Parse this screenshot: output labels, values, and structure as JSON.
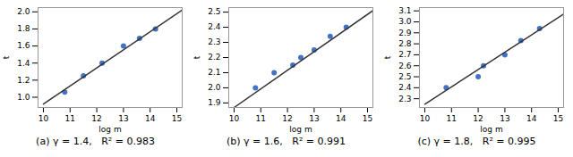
{
  "chart_data": [
    {
      "type": "scatter",
      "title": "(a) γ = 1.4,   R² = 0.983",
      "xlabel": "log m",
      "ylabel": "t",
      "xlim": [
        9.8,
        15.2
      ],
      "xticks": [
        10,
        11,
        12,
        13,
        14,
        15
      ],
      "ylim": [
        0.88,
        2.05
      ],
      "yticks": [
        {
          "value": 1.0,
          "label": "1.0"
        },
        1.2,
        1.4,
        1.6,
        1.8,
        {
          "value": 2.0,
          "label": "2.0"
        }
      ],
      "series": [
        {
          "type": "scatter",
          "color": "#4472c4",
          "x": [
            10.8,
            11.5,
            12.2,
            13.0,
            13.6,
            14.2
          ],
          "values": [
            1.06,
            1.25,
            1.4,
            1.6,
            1.69,
            1.8
          ]
        },
        {
          "type": "line",
          "color": "#333333",
          "x": [
            10.0,
            15.2
          ],
          "values": [
            0.92,
            2.02
          ]
        }
      ]
    },
    {
      "type": "scatter",
      "title": "(b) γ = 1.6,   R² = 0.991",
      "xlabel": "log m",
      "ylabel": "t",
      "xlim": [
        9.8,
        15.2
      ],
      "xticks": [
        10,
        11,
        12,
        13,
        14,
        15
      ],
      "ylim": [
        1.87,
        2.53
      ],
      "yticks": [
        1.9,
        {
          "value": 2.0,
          "label": "2.0"
        },
        2.1,
        2.2,
        2.3,
        2.4,
        2.5
      ],
      "series": [
        {
          "type": "scatter",
          "color": "#4472c4",
          "x": [
            10.8,
            11.5,
            12.2,
            12.5,
            13.0,
            13.6,
            14.2
          ],
          "values": [
            2.0,
            2.1,
            2.15,
            2.2,
            2.25,
            2.34,
            2.4
          ]
        },
        {
          "type": "line",
          "color": "#333333",
          "x": [
            10.0,
            15.2
          ],
          "values": [
            1.87,
            2.51
          ]
        }
      ]
    },
    {
      "type": "scatter",
      "title": "(c) γ = 1.8,   R² = 0.995",
      "xlabel": "log m",
      "ylabel": "t",
      "xlim": [
        9.8,
        15.2
      ],
      "xticks": [
        10,
        11,
        12,
        13,
        14,
        15
      ],
      "ylim": [
        2.22,
        3.13
      ],
      "yticks": [
        2.3,
        2.4,
        2.5,
        2.6,
        2.7,
        2.8,
        2.9,
        {
          "value": 3.0,
          "label": "3.0"
        },
        3.1
      ],
      "series": [
        {
          "type": "scatter",
          "color": "#4472c4",
          "x": [
            10.8,
            12.0,
            12.2,
            13.0,
            13.6,
            14.3
          ],
          "values": [
            2.4,
            2.5,
            2.6,
            2.7,
            2.83,
            2.94
          ]
        },
        {
          "type": "line",
          "color": "#333333",
          "x": [
            10.0,
            15.2
          ],
          "values": [
            2.25,
            3.07
          ]
        }
      ]
    }
  ]
}
